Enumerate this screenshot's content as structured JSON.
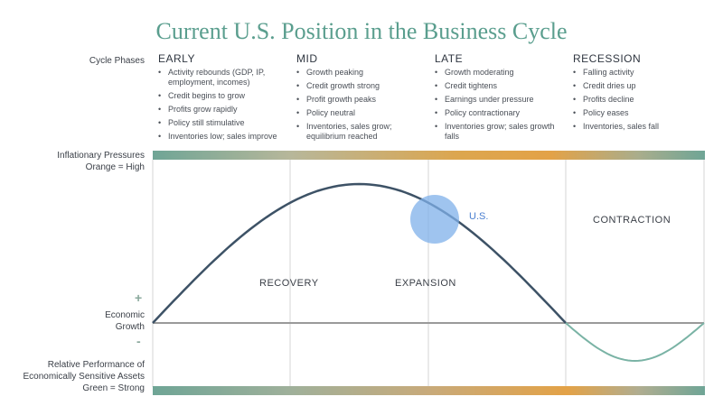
{
  "title": "Current U.S. Position in the Business Cycle",
  "side_labels": {
    "cycle_phases": "Cycle Phases",
    "inflationary_pressures": "Inflationary Pressures\nOrange = High",
    "economic_growth": "Economic\nGrowth",
    "plus": "+",
    "minus": "-",
    "relative_performance": "Relative Performance of\nEconomically Sensitive Assets\nGreen = Strong"
  },
  "phases": [
    {
      "name": "EARLY",
      "bullets": [
        "Activity rebounds (GDP, IP, employment, incomes)",
        "Credit begins to grow",
        "Profits grow rapidly",
        "Policy still stimulative",
        "Inventories low; sales improve"
      ]
    },
    {
      "name": "MID",
      "bullets": [
        "Growth peaking",
        "Credit growth strong",
        "Profit growth peaks",
        "Policy neutral",
        "Inventories, sales grow; equilibrium reached"
      ]
    },
    {
      "name": "LATE",
      "bullets": [
        "Growth moderating",
        "Credit tightens",
        "Earnings under pressure",
        "Policy contractionary",
        "Inventories grow; sales growth falls"
      ]
    },
    {
      "name": "RECESSION",
      "bullets": [
        "Falling activity",
        "Credit dries up",
        "Profits decline",
        "Policy eases",
        "Inventories, sales fall"
      ]
    }
  ],
  "regions": {
    "recovery": "RECOVERY",
    "expansion": "EXPANSION",
    "contraction": "CONTRACTION"
  },
  "marker": {
    "label": "U.S."
  },
  "colors": {
    "title": "#5a9e8e",
    "growth_curve": "#3d5266",
    "contraction_curve": "#7ab3a5",
    "axis": "#9a9a9a",
    "marker": "#7fb0ea",
    "band_teal": "#6fa596",
    "band_orange": "#e3a247"
  }
}
